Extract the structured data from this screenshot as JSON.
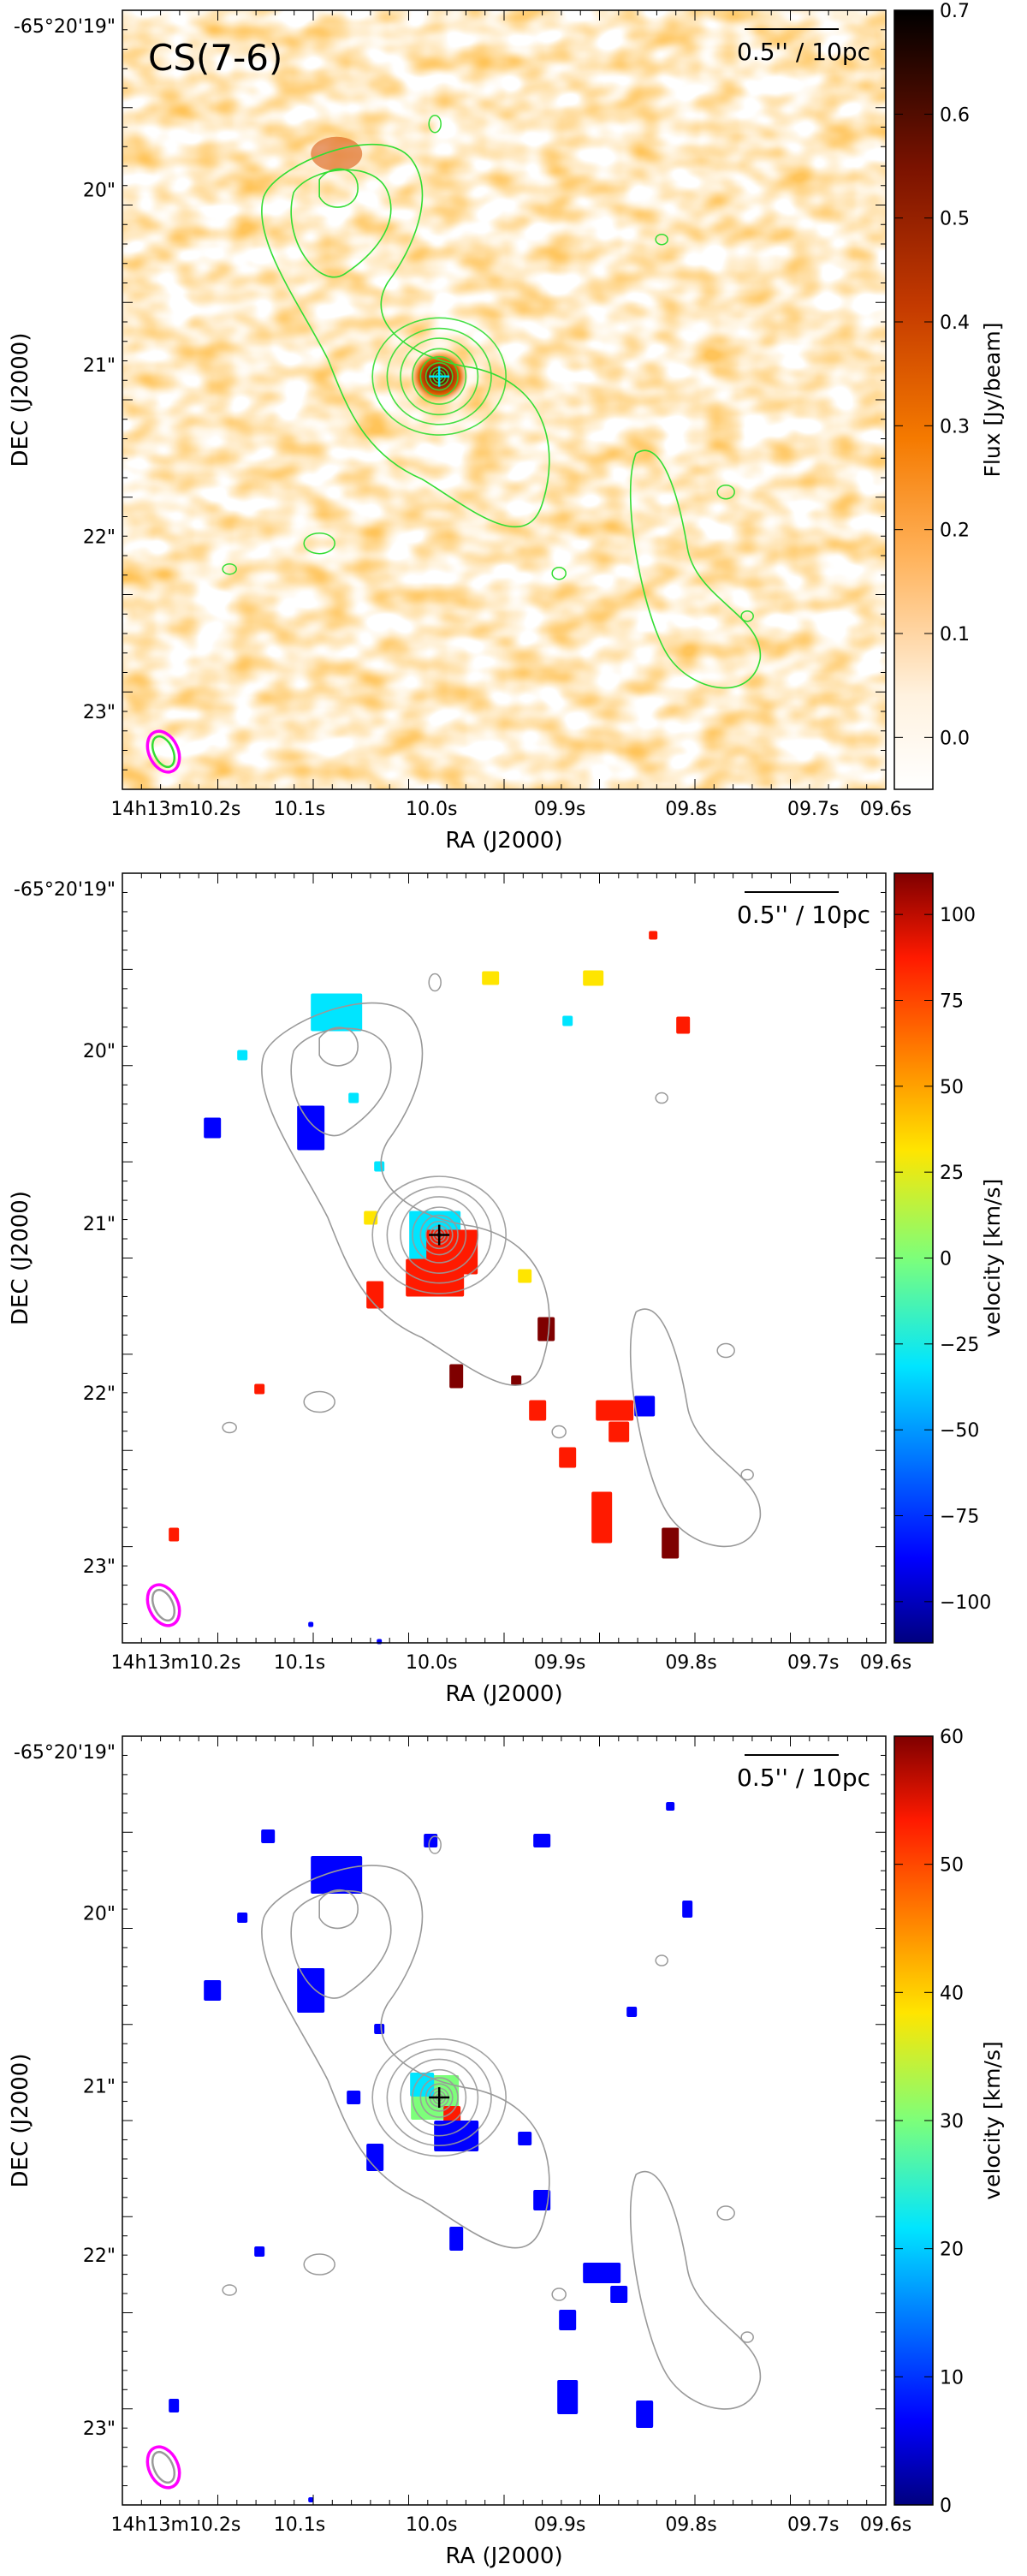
{
  "chart_data": [
    {
      "type": "heatmap",
      "label": "CS(7-6)",
      "xlabel": "RA (J2000)",
      "ylabel": "DEC (J2000)",
      "x_tick_labels": [
        "14h13m10.2s",
        "10.1s",
        "10.0s",
        "09.9s",
        "09.8s",
        "09.7s",
        "09.6s"
      ],
      "y_tick_labels": [
        "-65°20'19\"",
        "20\"",
        "21\"",
        "22\"",
        "23\""
      ],
      "colorbar": {
        "label": "Flux [Jy/beam]",
        "range": [
          -0.05,
          0.7
        ],
        "ticks": [
          0.0,
          0.1,
          0.2,
          0.3,
          0.4,
          0.5,
          0.6,
          0.7
        ],
        "tick_labels": [
          "0.0",
          "0.1",
          "0.2",
          "0.3",
          "0.4",
          "0.5",
          "0.6",
          "0.7"
        ],
        "colormap": "white-orange-red-black"
      },
      "scale_bar": "0.5'' / 10pc",
      "contour_color": "#33dd33",
      "marker": {
        "symbol": "+",
        "color": "#00e5ff"
      },
      "beam_colors": [
        "#ff00ff",
        "#33dd33"
      ]
    },
    {
      "type": "heatmap",
      "xlabel": "RA (J2000)",
      "ylabel": "DEC (J2000)",
      "x_tick_labels": [
        "14h13m10.2s",
        "10.1s",
        "10.0s",
        "09.9s",
        "09.8s",
        "09.7s",
        "09.6s"
      ],
      "y_tick_labels": [
        "-65°20'19\"",
        "20\"",
        "21\"",
        "22\"",
        "23\""
      ],
      "colorbar": {
        "label": "velocity [km/s]",
        "range": [
          -112,
          112
        ],
        "ticks": [
          -100,
          -75,
          -50,
          -25,
          0,
          25,
          50,
          75,
          100
        ],
        "tick_labels": [
          "−100",
          "−75",
          "−50",
          "−25",
          "0",
          "25",
          "50",
          "75",
          "100"
        ],
        "colormap": "jet"
      },
      "scale_bar": "0.5'' / 10pc",
      "contour_color": "#999999",
      "marker": {
        "symbol": "+",
        "color": "#000000"
      },
      "beam_colors": [
        "#ff00ff",
        "#999999"
      ]
    },
    {
      "type": "heatmap",
      "xlabel": "RA (J2000)",
      "ylabel": "DEC (J2000)",
      "x_tick_labels": [
        "14h13m10.2s",
        "10.1s",
        "10.0s",
        "09.9s",
        "09.8s",
        "09.7s",
        "09.6s"
      ],
      "y_tick_labels": [
        "-65°20'19\"",
        "20\"",
        "21\"",
        "22\"",
        "23\""
      ],
      "colorbar": {
        "label": "velocity [km/s]",
        "range": [
          0,
          60
        ],
        "ticks": [
          0,
          10,
          20,
          30,
          40,
          50,
          60
        ],
        "tick_labels": [
          "0",
          "10",
          "20",
          "30",
          "40",
          "50",
          "60"
        ],
        "colormap": "jet"
      },
      "scale_bar": "0.5'' / 10pc",
      "contour_color": "#999999",
      "marker": {
        "symbol": "+",
        "color": "#000000"
      },
      "beam_colors": [
        "#ff00ff",
        "#999999"
      ]
    }
  ]
}
